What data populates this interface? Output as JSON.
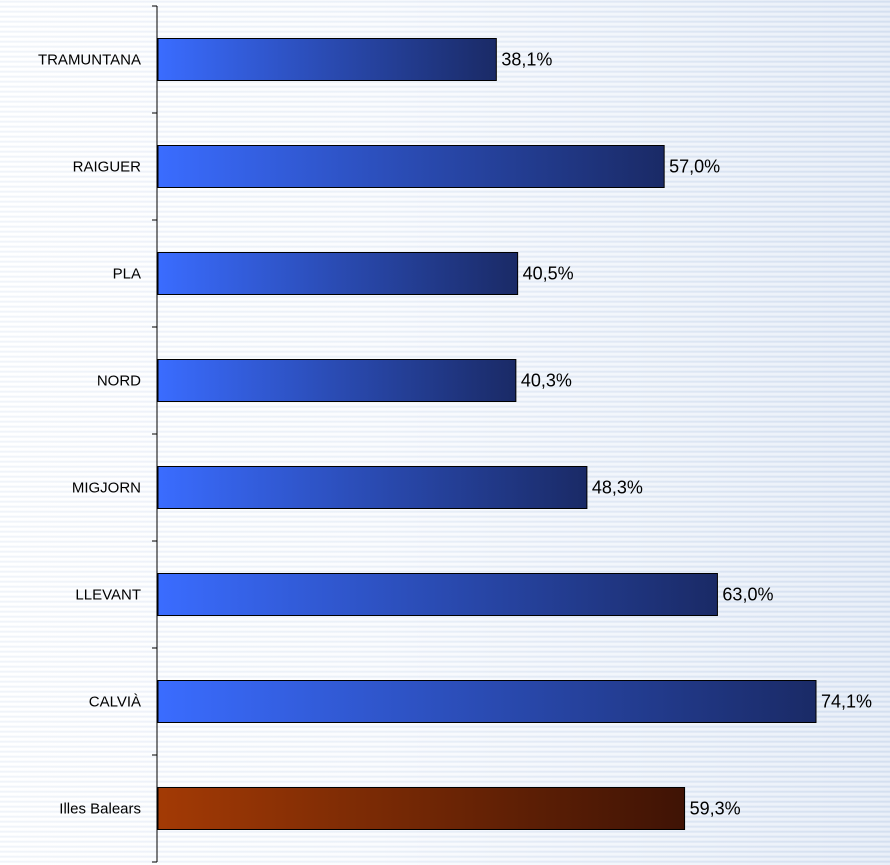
{
  "chart_data": {
    "type": "bar",
    "orientation": "horizontal",
    "categories": [
      "TRAMUNTANA",
      "RAIGUER",
      "PLA",
      "NORD",
      "MIGJORN",
      "LLEVANT",
      "CALVIÀ",
      "Illes Balears"
    ],
    "values": [
      38.1,
      57.0,
      40.5,
      40.3,
      48.3,
      63.0,
      74.1,
      59.3
    ],
    "value_labels": [
      "38,1%",
      "57,0%",
      "40,5%",
      "40,3%",
      "48,3%",
      "63,0%",
      "74,1%",
      "59,3%"
    ],
    "unit": "%",
    "xlim": [
      0,
      74.1
    ],
    "title": "",
    "xlabel": "",
    "ylabel": "",
    "grid": false,
    "colors": {
      "regions_start": "#3a6cff",
      "regions_end": "#1a2a66",
      "total_start": "#a33a05",
      "total_end": "#3f1305",
      "axis": "#000000"
    },
    "highlight_category": "Illes Balears"
  }
}
